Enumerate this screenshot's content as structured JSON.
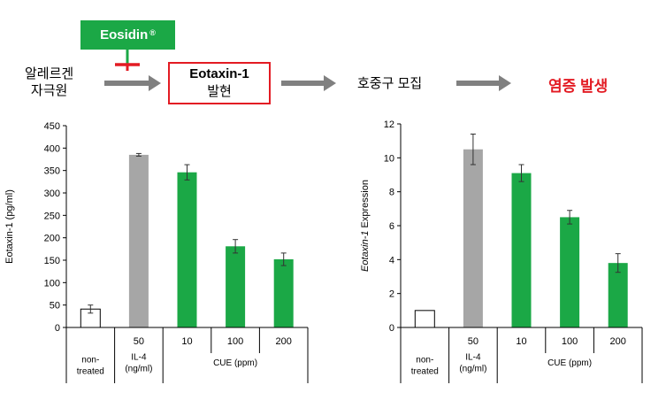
{
  "pathway": {
    "inhibitor_name": "Eosidin",
    "inhibitor_mark": "®",
    "step1_line1": "알레르겐",
    "step1_line2": "자극원",
    "target_line1": "Eotaxin-1",
    "target_line2": "발현",
    "step3": "호중구 모집",
    "outcome": "염증 발생",
    "colors": {
      "inhibitor_box": "#1ba846",
      "target_border": "#e31b23",
      "arrow": "#808080",
      "outcome_text": "#e31b23"
    }
  },
  "chart_data": [
    {
      "type": "bar",
      "categories": [
        "non-treated",
        "50",
        "10",
        "100",
        "200"
      ],
      "values": [
        41,
        385,
        346,
        181,
        152
      ],
      "errors": [
        9,
        3,
        17,
        15,
        14
      ],
      "colors": [
        "#ffffff",
        "#a6a6a6",
        "#1ba846",
        "#1ba846",
        "#1ba846"
      ],
      "ylabel": "Eotaxin-1 (pg/ml)",
      "ylim": [
        0,
        450
      ],
      "yticks": [
        "0",
        "50",
        "100",
        "150",
        "200",
        "250",
        "300",
        "350",
        "400",
        "450"
      ],
      "group_labels": [
        "non-\ntreated",
        "IL-4\n(ng/ml)",
        "CUE (ppm)"
      ],
      "grid": false
    },
    {
      "type": "bar",
      "categories": [
        "non-treated",
        "50",
        "10",
        "100",
        "200"
      ],
      "values": [
        1.0,
        10.5,
        9.1,
        6.5,
        3.8
      ],
      "errors": [
        0,
        0.9,
        0.5,
        0.4,
        0.55
      ],
      "colors": [
        "#ffffff",
        "#a6a6a6",
        "#1ba846",
        "#1ba846",
        "#1ba846"
      ],
      "ylabel_italic": "Eotaxin-1",
      "ylabel_rest": " Expression",
      "ylim": [
        0,
        12
      ],
      "yticks": [
        "0",
        "2",
        "4",
        "6",
        "8",
        "10",
        "12"
      ],
      "group_labels": [
        "non-\ntreated",
        "IL-4\n(ng/ml)",
        "CUE (ppm)"
      ],
      "grid": false
    }
  ]
}
